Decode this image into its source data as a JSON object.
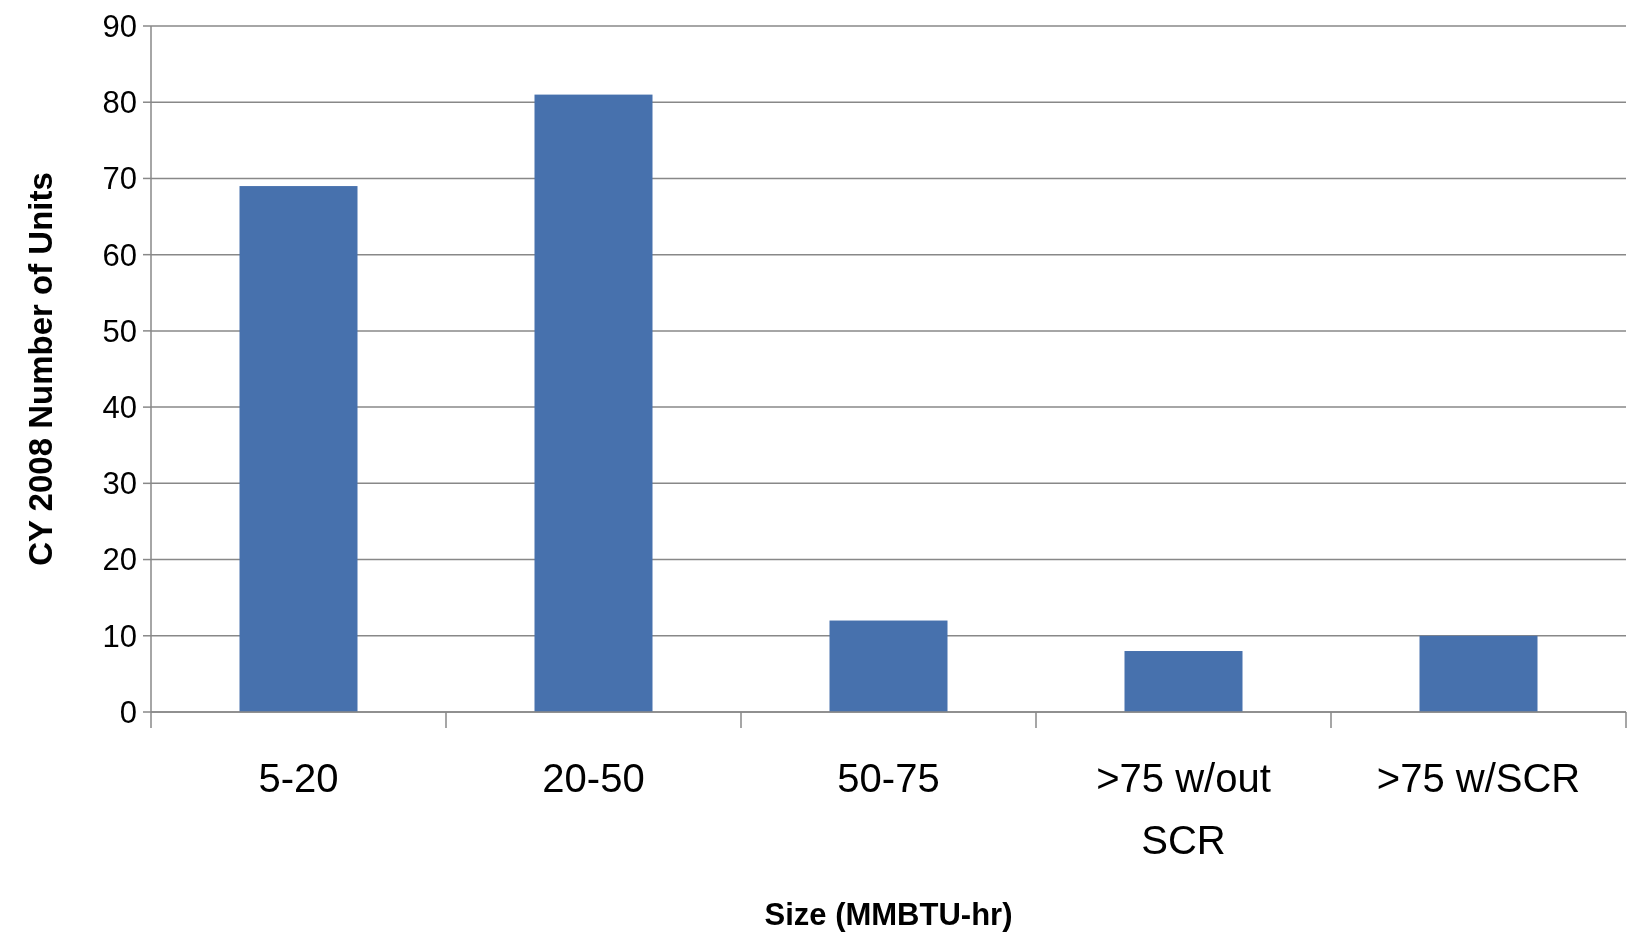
{
  "chart_data": {
    "type": "bar",
    "xlabel": "Size (MMBTU-hr)",
    "ylabel": "CY 2008 Number of Units",
    "categories": [
      "5-20",
      "20-50",
      "50-75",
      ">75 w/out SCR",
      ">75 w/SCR"
    ],
    "values": [
      69,
      81,
      12,
      8,
      10
    ],
    "color": "#4771ad",
    "ylim": [
      0,
      90
    ],
    "yticks": [
      0,
      10,
      20,
      30,
      40,
      50,
      60,
      70,
      80,
      90
    ],
    "grid": "y"
  }
}
